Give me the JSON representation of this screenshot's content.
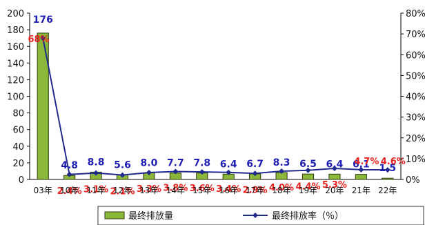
{
  "chart_data": {
    "type": "bar+line",
    "categories": [
      "03年",
      "10年",
      "11年",
      "12年",
      "13年",
      "14年",
      "15年",
      "16年",
      "17年",
      "18年",
      "19年",
      "20年",
      "21年",
      "22年"
    ],
    "series": [
      {
        "name": "最终排放量",
        "type": "bar",
        "axis": "left",
        "values": [
          176,
          4.8,
          8.8,
          5.6,
          8.0,
          7.7,
          7.8,
          6.4,
          6.7,
          8.3,
          6.5,
          6.4,
          6.1,
          1.5
        ],
        "value_labels": [
          "176",
          "4.8",
          "8.8",
          "5.6",
          "8.0",
          "7.7",
          "7.8",
          "6.4",
          "6.7",
          "8.3",
          "6.5",
          "6.4",
          "6.1",
          "1.5"
        ],
        "color": "#8cb83a"
      },
      {
        "name": "最终排放率（％）",
        "type": "line",
        "axis": "right",
        "values": [
          68,
          2.4,
          3.1,
          2.1,
          3.3,
          3.8,
          3.6,
          3.4,
          2.9,
          4.0,
          4.4,
          5.3,
          4.7,
          4.6
        ],
        "value_labels": [
          "68%",
          "2.4%",
          "3.1%",
          "2.1%",
          "3.3%",
          "3.8%",
          "3.6%",
          "3.4%",
          "2.9%",
          "4.0%",
          "4.4%",
          "5.3%",
          "4.7%",
          "4.6%"
        ],
        "color": "#1f2a8c"
      }
    ],
    "left_axis": {
      "ylim": [
        0,
        200
      ],
      "ticks": [
        "0",
        "20",
        "40",
        "60",
        "80",
        "100",
        "120",
        "140",
        "160",
        "180",
        "200"
      ]
    },
    "right_axis": {
      "ylim": [
        0,
        80
      ],
      "ticks": [
        "0%",
        "10%",
        "20%",
        "30%",
        "40%",
        "50%",
        "60%",
        "70%",
        "80%"
      ]
    },
    "legend": {
      "position": "bottom",
      "items": [
        "最终排放量",
        "最终排放率（％）"
      ]
    },
    "grid": false
  }
}
